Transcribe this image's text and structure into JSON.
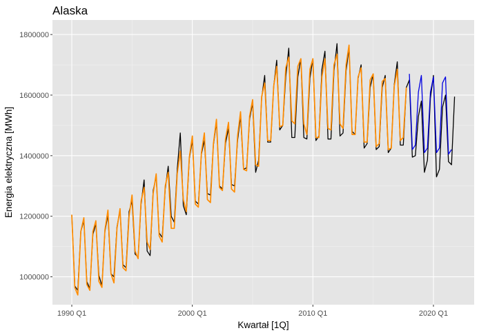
{
  "chart_data": {
    "type": "line",
    "title": "Alaska",
    "xlabel": "Kwartał [1Q]",
    "ylabel": "Energia elektryczna [MWh]",
    "x_start": "1990 Q1",
    "frequency": "quarterly",
    "x_ticks": [
      "1990 Q1",
      "2000 Q1",
      "2010 Q1",
      "2020 Q1"
    ],
    "y_ticks": [
      1000000,
      1200000,
      1400000,
      1600000,
      1800000
    ],
    "y_tick_labels": [
      "1000000",
      "1200000",
      "1400000",
      "1600000",
      "1800000"
    ],
    "ylim": [
      908000,
      1848000
    ],
    "grid": true,
    "legend": "none",
    "series": [
      {
        "color": "#000000",
        "start": "1990 Q1",
        "values": [
          1205000,
          970000,
          955000,
          1150000,
          1185000,
          985000,
          960000,
          1140000,
          1175000,
          1005000,
          970000,
          1150000,
          1205000,
          1010000,
          1000000,
          1165000,
          1220000,
          1040000,
          1030000,
          1215000,
          1250000,
          1075000,
          1065000,
          1240000,
          1320000,
          1085000,
          1070000,
          1285000,
          1330000,
          1145000,
          1130000,
          1290000,
          1365000,
          1200000,
          1180000,
          1355000,
          1475000,
          1235000,
          1205000,
          1390000,
          1450000,
          1250000,
          1240000,
          1405000,
          1450000,
          1275000,
          1270000,
          1435000,
          1510000,
          1300000,
          1290000,
          1440000,
          1490000,
          1305000,
          1300000,
          1450000,
          1530000,
          1355000,
          1360000,
          1520000,
          1575000,
          1345000,
          1385000,
          1590000,
          1665000,
          1445000,
          1445000,
          1630000,
          1715000,
          1485000,
          1500000,
          1660000,
          1755000,
          1460000,
          1460000,
          1660000,
          1720000,
          1460000,
          1455000,
          1655000,
          1720000,
          1450000,
          1465000,
          1685000,
          1745000,
          1455000,
          1455000,
          1680000,
          1770000,
          1465000,
          1475000,
          1680000,
          1755000,
          1480000,
          1470000,
          1655000,
          1700000,
          1425000,
          1440000,
          1625000,
          1670000,
          1420000,
          1430000,
          1625000,
          1665000,
          1410000,
          1425000,
          1635000,
          1710000,
          1435000,
          1435000,
          1625000,
          1650000,
          1395000,
          1400000,
          1530000,
          1580000,
          1345000,
          1385000,
          1590000,
          1665000,
          1330000,
          1355000,
          1560000,
          1600000,
          1380000,
          1370000,
          1595000
        ]
      },
      {
        "color": "#ff8c00",
        "start": "1990 Q1",
        "values": [
          1205000,
          965000,
          940000,
          1150000,
          1195000,
          975000,
          955000,
          1150000,
          1185000,
          985000,
          965000,
          1155000,
          1220000,
          1010000,
          980000,
          1160000,
          1225000,
          1030000,
          1020000,
          1200000,
          1270000,
          1085000,
          1060000,
          1250000,
          1295000,
          1115000,
          1090000,
          1275000,
          1340000,
          1135000,
          1115000,
          1300000,
          1345000,
          1160000,
          1160000,
          1340000,
          1415000,
          1255000,
          1215000,
          1395000,
          1465000,
          1240000,
          1230000,
          1410000,
          1475000,
          1255000,
          1245000,
          1440000,
          1520000,
          1295000,
          1285000,
          1455000,
          1510000,
          1290000,
          1280000,
          1465000,
          1545000,
          1355000,
          1350000,
          1530000,
          1585000,
          1370000,
          1365000,
          1595000,
          1640000,
          1450000,
          1450000,
          1630000,
          1695000,
          1495000,
          1500000,
          1690000,
          1725000,
          1515000,
          1505000,
          1695000,
          1720000,
          1505000,
          1470000,
          1685000,
          1720000,
          1460000,
          1460000,
          1660000,
          1720000,
          1490000,
          1485000,
          1700000,
          1735000,
          1505000,
          1490000,
          1700000,
          1765000,
          1470000,
          1470000,
          1660000,
          1690000,
          1445000,
          1445000,
          1650000,
          1670000,
          1430000,
          1440000,
          1645000,
          1655000,
          1420000,
          1425000,
          1630000,
          1685000,
          1450000,
          1460000,
          1625000
        ]
      },
      {
        "color": "#0000e0",
        "start": "2018 Q1",
        "values": [
          1670000,
          1420000,
          1435000,
          1610000,
          1665000,
          1410000,
          1425000,
          1610000,
          1660000,
          1410000,
          1425000,
          1640000,
          1660000,
          1405000,
          1420000
        ]
      }
    ]
  }
}
